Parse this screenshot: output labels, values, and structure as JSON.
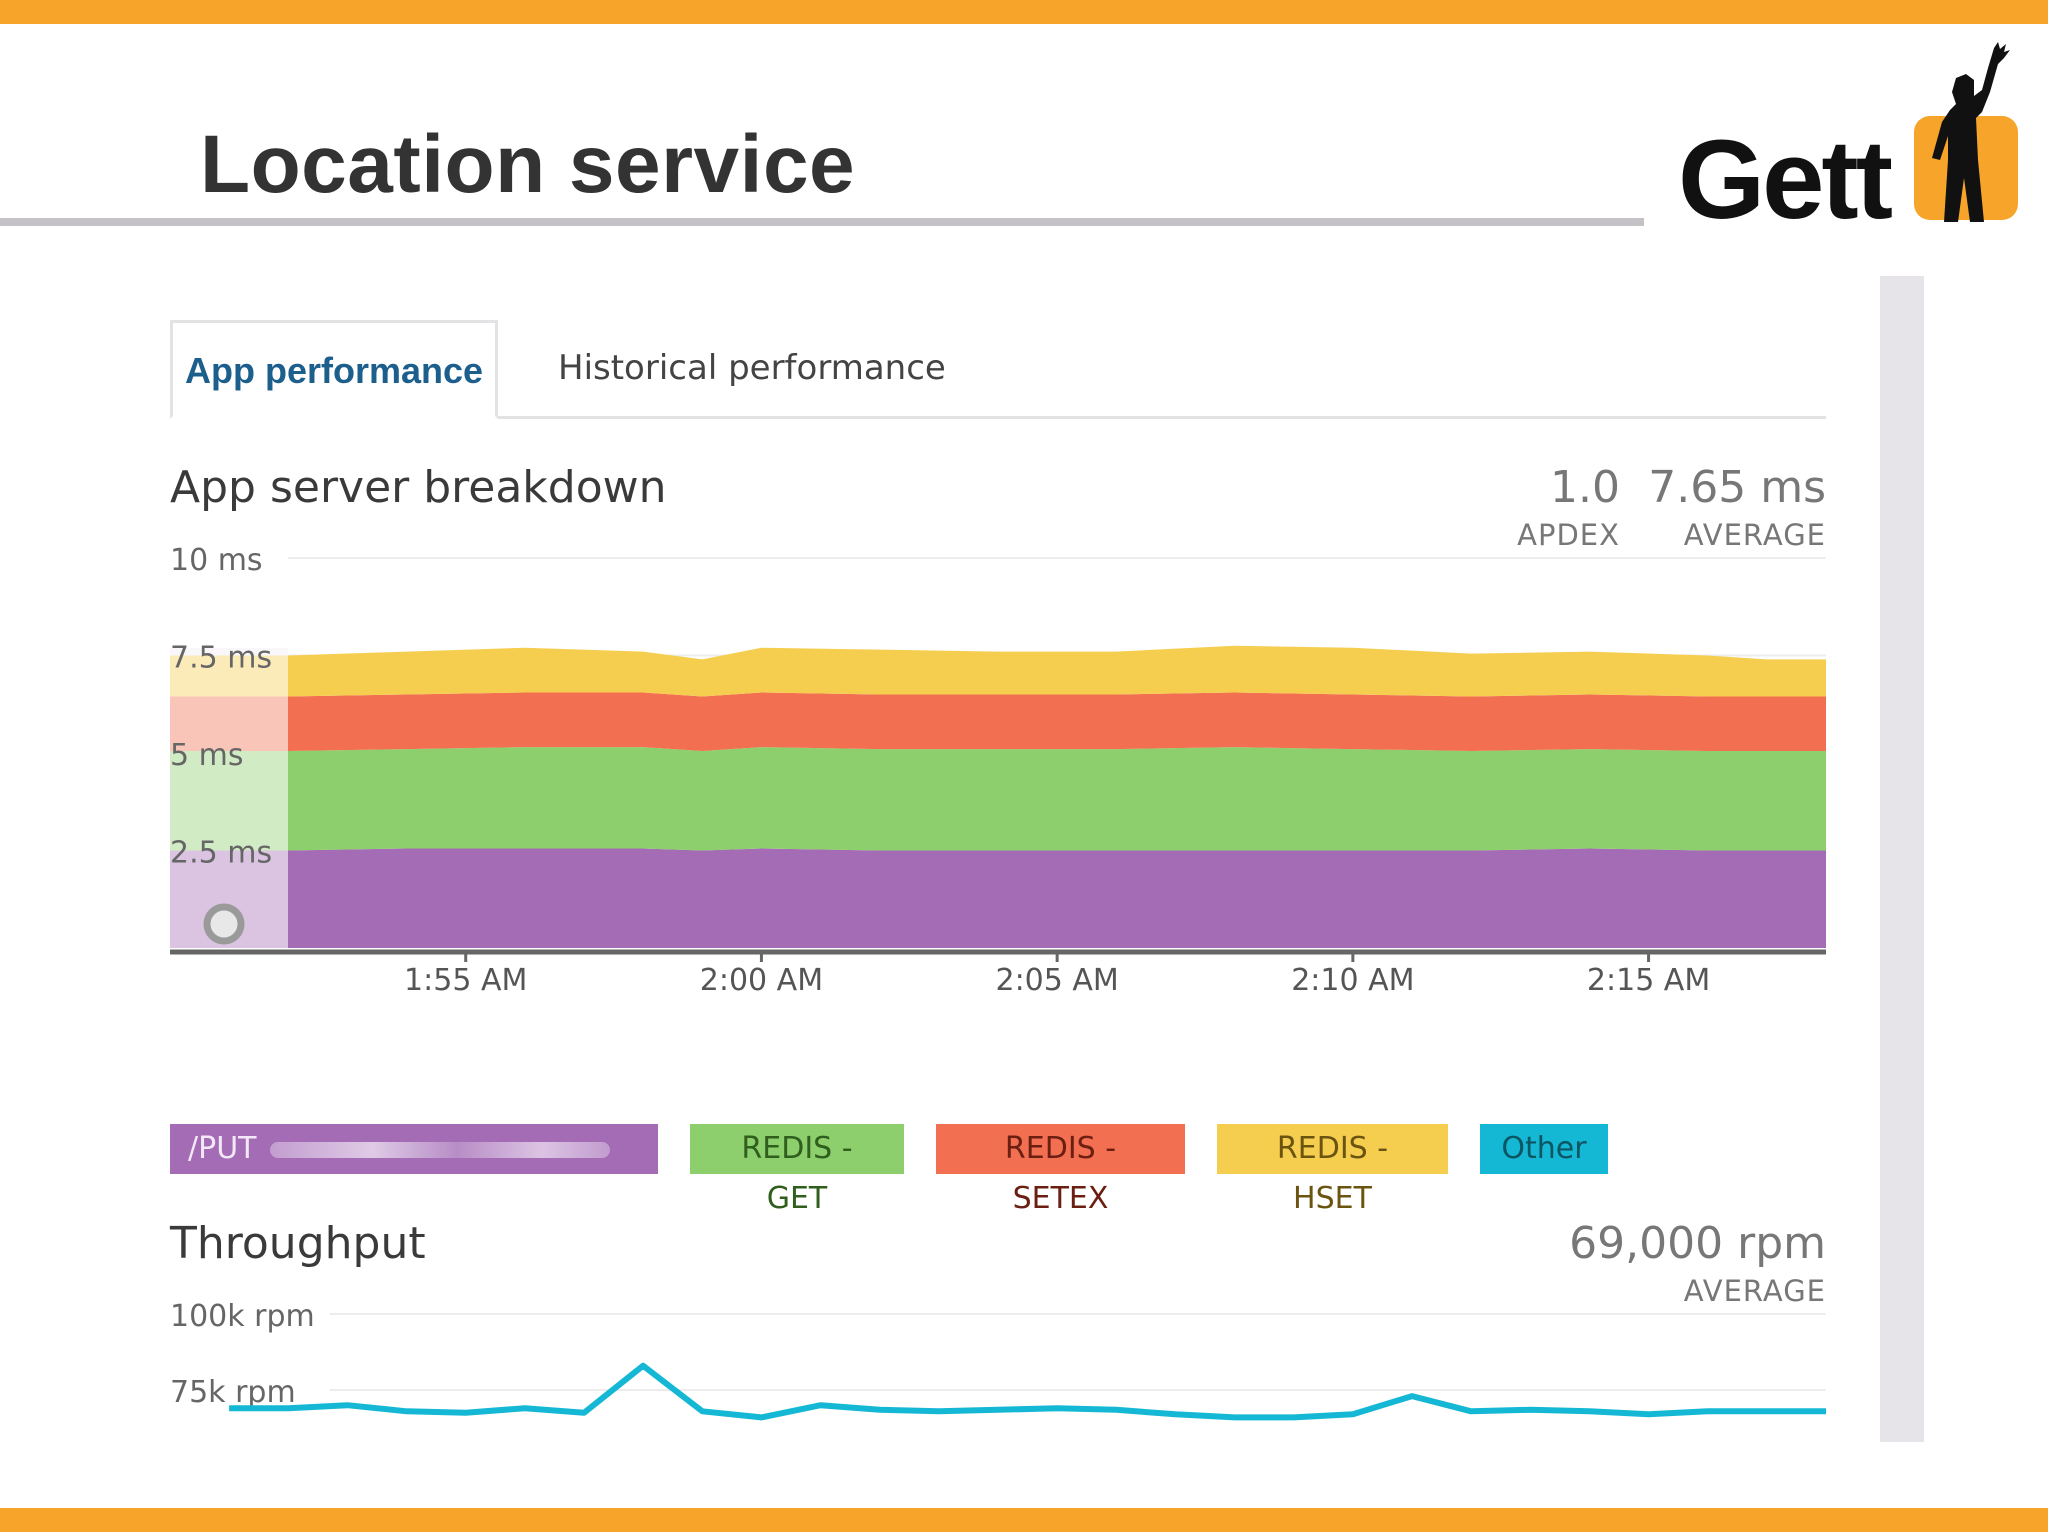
{
  "slide": {
    "title": "Location service",
    "logo_text": "Gett",
    "accent_color": "#f6a52a"
  },
  "tabs": [
    {
      "label": "App performance",
      "active": true
    },
    {
      "label": "Historical performance",
      "active": false
    }
  ],
  "breakdown": {
    "title": "App server breakdown",
    "apdex_value": "1.0",
    "apdex_label": "APDEX",
    "average_value": "7.65 ms",
    "average_label": "AVERAGE"
  },
  "throughput": {
    "title": "Throughput",
    "average_value": "69,000 rpm",
    "average_label": "AVERAGE"
  },
  "legend": [
    {
      "label": "/PUT",
      "color": "#a46cb5",
      "redacted": true
    },
    {
      "label": "REDIS - GET",
      "color": "#8dcf6c"
    },
    {
      "label": "REDIS - SETEX",
      "color": "#f26f52"
    },
    {
      "label": "REDIS - HSET",
      "color": "#f5ce50"
    },
    {
      "label": "Other",
      "color": "#14b8d4"
    }
  ],
  "chart_data": [
    {
      "type": "area",
      "stacked": true,
      "y_tick_labels": [
        "10 ms",
        "7.5 ms",
        "5 ms",
        "2.5 ms"
      ],
      "y_ticks": [
        10,
        7.5,
        5,
        2.5
      ],
      "ylim": [
        0,
        10
      ],
      "unit": "ms",
      "x_tick_labels": [
        "1:55 AM",
        "2:00 AM",
        "2:05 AM",
        "2:10 AM",
        "2:15 AM"
      ],
      "x_tick_minutes": [
        5,
        10,
        15,
        20,
        25
      ],
      "x_range_minutes": [
        0,
        28
      ],
      "x_minutes": [
        2,
        4,
        6,
        8,
        9,
        10,
        12,
        14,
        16,
        18,
        20,
        22,
        24,
        26,
        27,
        28
      ],
      "series": [
        {
          "name": "/PUT",
          "color": "#a46cb5",
          "values": [
            2.5,
            2.55,
            2.55,
            2.55,
            2.5,
            2.55,
            2.5,
            2.5,
            2.5,
            2.5,
            2.5,
            2.5,
            2.55,
            2.5,
            2.5,
            2.5
          ]
        },
        {
          "name": "REDIS - GET",
          "color": "#8dcf6c",
          "values": [
            2.55,
            2.55,
            2.6,
            2.6,
            2.55,
            2.6,
            2.6,
            2.6,
            2.6,
            2.65,
            2.6,
            2.55,
            2.55,
            2.55,
            2.55,
            2.55
          ]
        },
        {
          "name": "REDIS - SETEX",
          "color": "#f26f52",
          "values": [
            1.4,
            1.4,
            1.4,
            1.4,
            1.4,
            1.4,
            1.4,
            1.4,
            1.4,
            1.4,
            1.4,
            1.4,
            1.4,
            1.4,
            1.4,
            1.4
          ]
        },
        {
          "name": "REDIS - HSET",
          "color": "#f5ce50",
          "values": [
            1.05,
            1.1,
            1.15,
            1.05,
            0.95,
            1.15,
            1.15,
            1.1,
            1.1,
            1.2,
            1.2,
            1.1,
            1.1,
            1.05,
            0.95,
            0.95
          ]
        }
      ]
    },
    {
      "type": "line",
      "y_tick_labels": [
        "100k rpm",
        "75k rpm"
      ],
      "y_ticks": [
        100000,
        75000
      ],
      "unit": "rpm",
      "x_range_minutes": [
        0,
        28
      ],
      "series": [
        {
          "name": "Other",
          "color": "#14b8d4",
          "x_minutes": [
            1,
            2,
            3,
            4,
            5,
            6,
            7,
            8,
            9,
            10,
            11,
            12,
            13,
            14,
            15,
            16,
            17,
            18,
            19,
            20,
            21,
            22,
            23,
            24,
            25,
            26,
            27,
            28
          ],
          "values": [
            69000,
            69000,
            70000,
            68000,
            67500,
            69000,
            67500,
            83000,
            68000,
            66000,
            70000,
            68500,
            68000,
            68500,
            69000,
            68500,
            67000,
            66000,
            66000,
            67000,
            73000,
            68000,
            68500,
            68000,
            67000,
            68000,
            68000,
            68000
          ]
        }
      ]
    }
  ]
}
